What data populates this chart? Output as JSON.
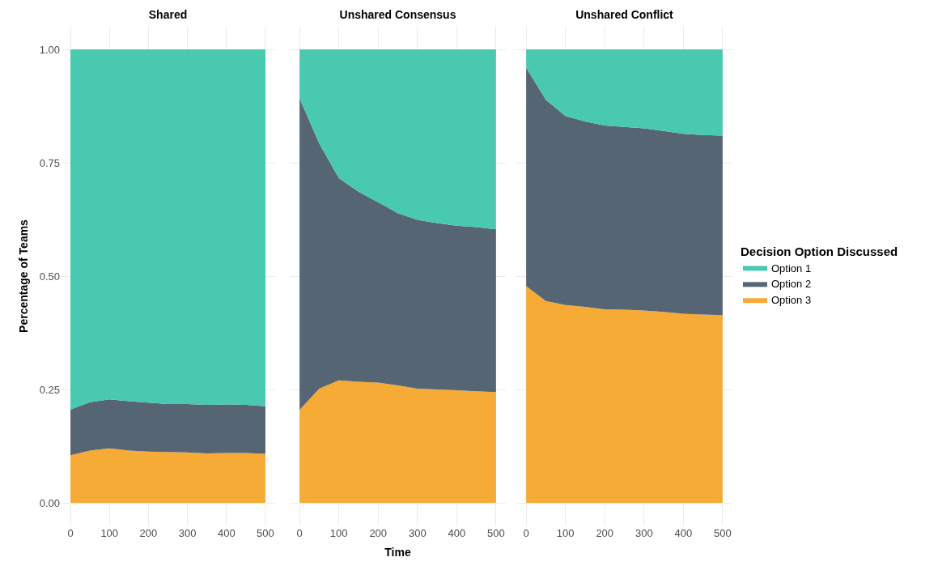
{
  "chart_data": [
    {
      "type": "area",
      "title": "Shared",
      "ylabel": "Percentage of Teams",
      "stacked": true,
      "grid": true,
      "x": [
        0,
        50,
        100,
        150,
        200,
        250,
        300,
        350,
        400,
        450,
        500
      ],
      "xlim": [
        -25,
        525
      ],
      "xticks": [
        0,
        100,
        200,
        300,
        400,
        500
      ],
      "ylim": [
        -0.05,
        1.05
      ],
      "yticks": [
        {
          "value": 0,
          "label": "0.00"
        },
        {
          "value": 0.25,
          "label": "0.25"
        },
        {
          "value": 0.5,
          "label": "0.50"
        },
        {
          "value": 0.75,
          "label": "0.75"
        },
        {
          "value": 1,
          "label": "1.00"
        }
      ],
      "series": [
        {
          "color": "#f5ab35",
          "values": [
            0.105,
            0.115,
            0.12,
            0.115,
            0.113,
            0.112,
            0.111,
            0.109,
            0.11,
            0.11,
            0.108
          ]
        },
        {
          "color": "#566573",
          "values": [
            0.101,
            0.107,
            0.108,
            0.109,
            0.108,
            0.106,
            0.107,
            0.107,
            0.107,
            0.106,
            0.105
          ]
        },
        {
          "color": "#48c9b0",
          "values": [
            0.794,
            0.778,
            0.772,
            0.776,
            0.779,
            0.782,
            0.782,
            0.784,
            0.783,
            0.784,
            0.787
          ]
        }
      ]
    },
    {
      "type": "area",
      "title": "Unshared Consensus",
      "xlabel": "Time",
      "stacked": true,
      "grid": true,
      "tick_labels": "x",
      "x": [
        0,
        50,
        100,
        150,
        200,
        250,
        300,
        350,
        400,
        450,
        500
      ],
      "xlim": [
        -25,
        525
      ],
      "xticks": [
        0,
        100,
        200,
        300,
        400,
        500
      ],
      "ylim": [
        -0.05,
        1.05
      ],
      "yticks": [
        {
          "value": 0,
          "label": null
        },
        {
          "value": 0.25,
          "label": null
        },
        {
          "value": 0.5,
          "label": null
        },
        {
          "value": 0.75,
          "label": null
        },
        {
          "value": 1,
          "label": null
        }
      ],
      "series": [
        {
          "color": "#f5ab35",
          "values": [
            0.205,
            0.252,
            0.27,
            0.267,
            0.265,
            0.259,
            0.252,
            0.25,
            0.248,
            0.246,
            0.244
          ]
        },
        {
          "color": "#566573",
          "values": [
            0.687,
            0.541,
            0.446,
            0.419,
            0.398,
            0.38,
            0.372,
            0.367,
            0.363,
            0.362,
            0.359
          ]
        },
        {
          "color": "#48c9b0",
          "values": [
            0.108,
            0.207,
            0.284,
            0.314,
            0.337,
            0.361,
            0.376,
            0.383,
            0.389,
            0.392,
            0.397
          ]
        }
      ]
    },
    {
      "type": "area",
      "title": "Unshared Conflict",
      "legend_title": "Decision Option Discussed",
      "legend": "right",
      "stacked": true,
      "grid": true,
      "tick_labels": "x",
      "x": [
        0,
        50,
        100,
        150,
        200,
        250,
        300,
        350,
        400,
        450,
        500
      ],
      "xlim": [
        -25,
        525
      ],
      "xticks": [
        0,
        100,
        200,
        300,
        400,
        500
      ],
      "ylim": [
        -0.05,
        1.05
      ],
      "yticks": [
        {
          "value": 0,
          "label": null
        },
        {
          "value": 0.25,
          "label": null
        },
        {
          "value": 0.5,
          "label": null
        },
        {
          "value": 0.75,
          "label": null
        },
        {
          "value": 1,
          "label": null
        }
      ],
      "series": [
        {
          "name": "Option 3",
          "color": "#f5ab35",
          "values": [
            0.478,
            0.445,
            0.436,
            0.432,
            0.427,
            0.426,
            0.424,
            0.421,
            0.417,
            0.415,
            0.414
          ]
        },
        {
          "name": "Option 2",
          "color": "#566573",
          "values": [
            0.482,
            0.444,
            0.417,
            0.409,
            0.405,
            0.403,
            0.402,
            0.399,
            0.397,
            0.396,
            0.396
          ]
        },
        {
          "name": "Option 1",
          "color": "#48c9b0",
          "values": [
            0.04,
            0.111,
            0.147,
            0.159,
            0.168,
            0.171,
            0.174,
            0.18,
            0.186,
            0.189,
            0.19
          ]
        }
      ]
    }
  ]
}
